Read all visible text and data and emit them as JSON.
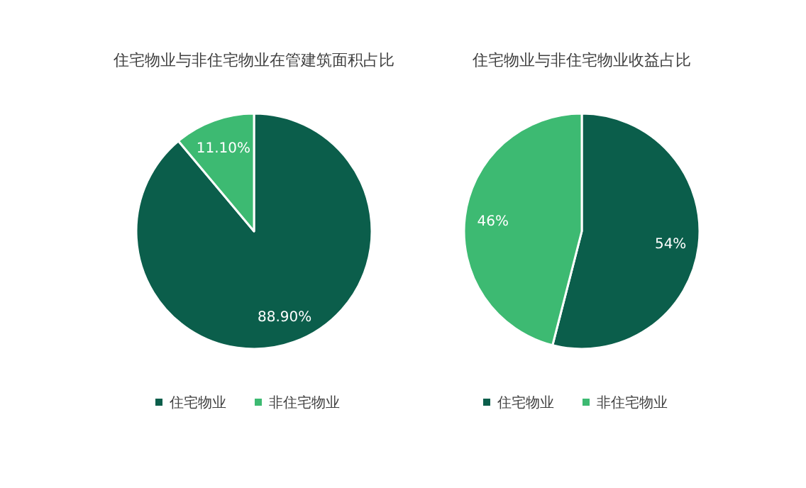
{
  "chart_data": [
    {
      "type": "pie",
      "title": "住宅物业与非住宅物业在管建筑面积占比",
      "categories": [
        "住宅物业",
        "非住宅物业"
      ],
      "values": [
        88.9,
        11.1
      ],
      "value_labels": [
        "88.90%",
        "11.10%"
      ],
      "colors": [
        "#0b5e4b",
        "#3dba72"
      ],
      "legend": "bottom"
    },
    {
      "type": "pie",
      "title": "住宅物业与非住宅物业收益占比",
      "categories": [
        "住宅物业",
        "非住宅物业"
      ],
      "values": [
        54,
        46
      ],
      "value_labels": [
        "54%",
        "46%"
      ],
      "colors": [
        "#0b5e4b",
        "#3dba72"
      ],
      "legend": "bottom"
    }
  ]
}
